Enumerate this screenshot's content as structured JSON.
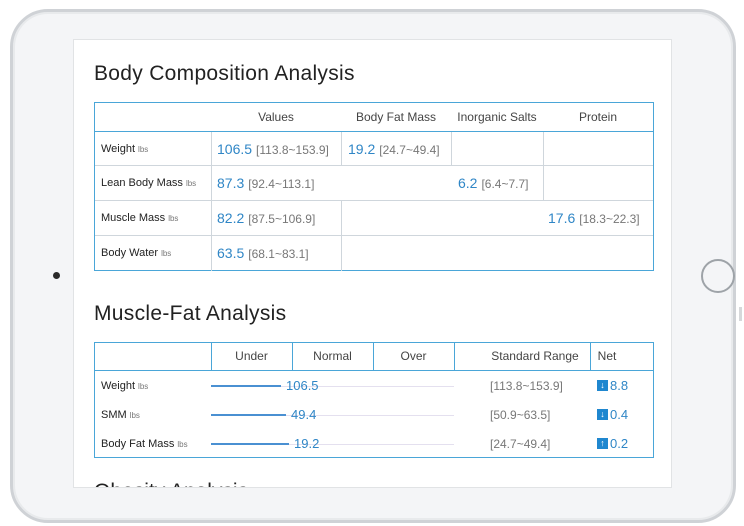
{
  "body_composition": {
    "title": "Body Composition Analysis",
    "headers": [
      "Values",
      "Body Fat Mass",
      "Inorganic Salts",
      "Protein"
    ],
    "rows": [
      {
        "label": "Weight",
        "unit": "lbs"
      },
      {
        "label": "Lean Body Mass",
        "unit": "lbs"
      },
      {
        "label": "Muscle Mass",
        "unit": "lbs"
      },
      {
        "label": "Body Water",
        "unit": "lbs"
      }
    ],
    "values": {
      "weight": {
        "value": "106.5",
        "range": "[113.8~153.9]"
      },
      "lean_body_mass": {
        "value": "87.3",
        "range": "[92.4~113.1]"
      },
      "muscle_mass": {
        "value": "82.2",
        "range": "[87.5~106.9]"
      },
      "body_water": {
        "value": "63.5",
        "range": "[68.1~83.1]"
      },
      "body_fat_mass": {
        "value": "19.2",
        "range": "[24.7~49.4]"
      },
      "inorganic_salts": {
        "value": "6.2",
        "range": "[6.4~7.7]"
      },
      "protein": {
        "value": "17.6",
        "range": "[18.3~22.3]"
      }
    }
  },
  "muscle_fat": {
    "title": "Muscle-Fat Analysis",
    "headers": [
      "Under",
      "Normal",
      "Over",
      "Standard Range",
      "Net"
    ],
    "rows": [
      {
        "label": "Weight",
        "unit": "lbs",
        "value": "106.5",
        "level": 0.29,
        "range": "[113.8~153.9]",
        "net": "8.8",
        "net_direction": "down"
      },
      {
        "label": "SMM",
        "unit": "lbs",
        "value": "49.4",
        "level": 0.31,
        "range": "[50.9~63.5]",
        "net": "0.4",
        "net_direction": "down"
      },
      {
        "label": "Body Fat Mass",
        "unit": "lbs",
        "value": "19.2",
        "level": 0.32,
        "range": "[24.7~49.4]",
        "net": "0.2",
        "net_direction": "up"
      }
    ]
  },
  "next_section_title": "Obesity Analysis",
  "colors": {
    "accent": "#2f86c6",
    "border": "#4aa6d8"
  }
}
